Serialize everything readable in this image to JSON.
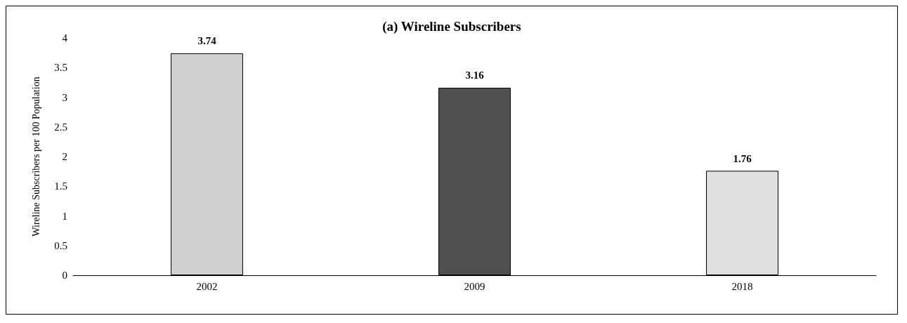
{
  "chart_data": {
    "type": "bar",
    "title": "(a) Wireline Subscribers",
    "ylabel": "Wireline Subscribers per 100 Population",
    "categories": [
      "2002",
      "2009",
      "2018"
    ],
    "values": [
      3.74,
      3.16,
      1.76
    ],
    "colors": [
      "#d0d0d0",
      "#505050",
      "#e0e0e0"
    ],
    "ylim": [
      0,
      4
    ],
    "yticks": [
      0,
      0.5,
      1,
      1.5,
      2,
      2.5,
      3,
      3.5,
      4
    ],
    "grid": false,
    "data_labels": true
  }
}
